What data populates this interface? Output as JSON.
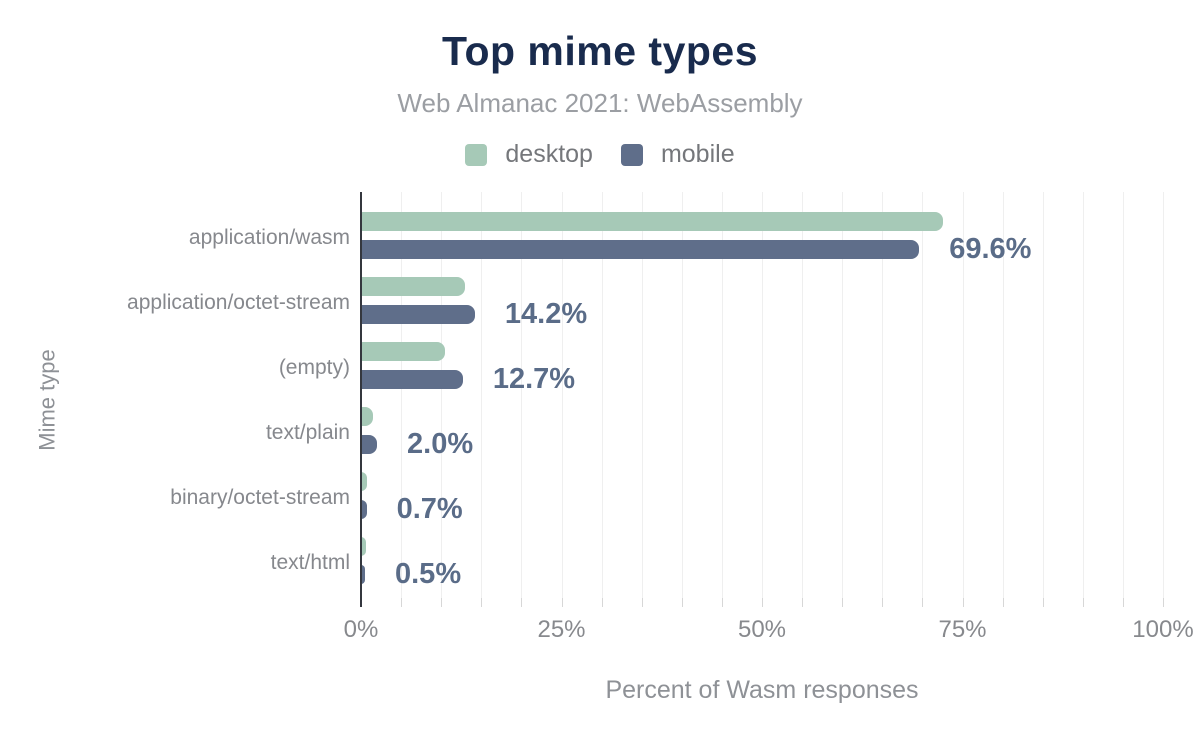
{
  "figure": {
    "title": "Top mime types",
    "subtitle": "Web Almanac 2021: WebAssembly"
  },
  "legend": [
    {
      "label": "desktop",
      "color": "#a6c9b7"
    },
    {
      "label": "mobile",
      "color": "#5f6e8a"
    }
  ],
  "chart_data": {
    "type": "bar",
    "orientation": "horizontal",
    "title": "Top mime types",
    "subtitle": "Web Almanac 2021: WebAssembly",
    "xlabel": "Percent of Wasm responses",
    "ylabel": "Mime type",
    "xlim": [
      0,
      100
    ],
    "gridline_step_percent": 5,
    "grid": true,
    "legend_position": "top",
    "categories": [
      "application/wasm",
      "application/octet-stream",
      "(empty)",
      "text/plain",
      "binary/octet-stream",
      "text/html"
    ],
    "series": [
      {
        "name": "desktop",
        "color": "#a6c9b7",
        "values": [
          72.6,
          13.0,
          10.5,
          1.5,
          0.8,
          0.6
        ],
        "note": "values estimated from bar lengths; not labeled in figure"
      },
      {
        "name": "mobile",
        "color": "#5f6e8a",
        "values": [
          69.6,
          14.2,
          12.7,
          2.0,
          0.7,
          0.5
        ]
      }
    ],
    "bar_labels": [
      "69.6%",
      "14.2%",
      "12.7%",
      "2.0%",
      "0.7%",
      "0.5%"
    ],
    "bar_labels_series": "mobile",
    "x_ticks": [
      {
        "value": 0,
        "label": "0%"
      },
      {
        "value": 25,
        "label": "25%"
      },
      {
        "value": 50,
        "label": "50%"
      },
      {
        "value": 75,
        "label": "75%"
      },
      {
        "value": 100,
        "label": "100%"
      }
    ]
  },
  "colors": {
    "title": "#192b4d",
    "subtitle": "#9b9ea3",
    "legend_text": "#75777b",
    "category": "#86888d",
    "desktop": "#a6c9b7",
    "mobile": "#5f6e8a",
    "value": "#5a6c88",
    "grid": "#efefef",
    "tick": "#d7d7d7",
    "axis": "#34373e",
    "tick_label": "#87898d",
    "axis_title": "#8e9196"
  }
}
